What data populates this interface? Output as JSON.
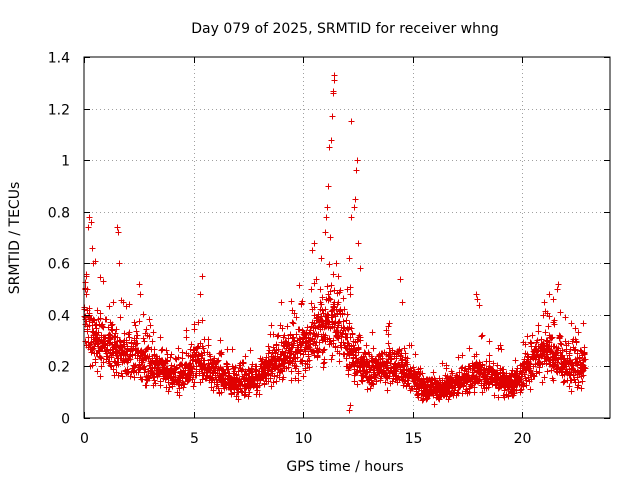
{
  "chart_data": {
    "type": "scatter",
    "title": "Day 079 of 2025, SRMTID for receiver whng",
    "xlabel": "GPS time / hours",
    "ylabel": "SRMTID / TECUs",
    "xlim": [
      0,
      24
    ],
    "ylim": [
      0,
      1.4
    ],
    "xticks": [
      0,
      5,
      10,
      15,
      20
    ],
    "yticks": [
      0,
      0.2,
      0.4,
      0.6,
      0.8,
      1,
      1.2,
      1.4
    ],
    "xtick_labels": [
      "0",
      "5",
      "10",
      "15",
      "20"
    ],
    "ytick_labels": [
      "0",
      "0.2",
      "0.4",
      "0.6",
      "0.8",
      "1",
      "1.2",
      "1.4"
    ],
    "grid": true,
    "marker": "+",
    "color": "#e00000",
    "series": [
      {
        "name": "SRMTID",
        "profile_x": [
          0.0,
          0.3,
          0.6,
          1.0,
          1.5,
          2.0,
          2.5,
          3.0,
          3.5,
          4.0,
          4.5,
          5.0,
          5.5,
          6.0,
          6.5,
          7.0,
          7.5,
          8.0,
          8.5,
          9.0,
          9.5,
          10.0,
          10.5,
          11.0,
          11.5,
          12.0,
          12.5,
          13.0,
          13.5,
          14.0,
          14.5,
          15.0,
          15.5,
          16.0,
          16.5,
          17.0,
          17.5,
          18.0,
          18.5,
          19.0,
          19.5,
          20.0,
          20.5,
          21.0,
          21.5,
          22.0,
          22.5,
          22.85
        ],
        "profile_y": [
          0.38,
          0.32,
          0.3,
          0.28,
          0.25,
          0.26,
          0.24,
          0.2,
          0.19,
          0.17,
          0.16,
          0.22,
          0.2,
          0.18,
          0.15,
          0.14,
          0.15,
          0.17,
          0.2,
          0.24,
          0.26,
          0.28,
          0.3,
          0.36,
          0.4,
          0.3,
          0.22,
          0.19,
          0.2,
          0.21,
          0.19,
          0.15,
          0.12,
          0.11,
          0.12,
          0.14,
          0.16,
          0.18,
          0.17,
          0.15,
          0.13,
          0.16,
          0.24,
          0.27,
          0.24,
          0.21,
          0.2,
          0.22
        ],
        "outliers": [
          [
            0.05,
            0.5
          ],
          [
            0.1,
            0.55
          ],
          [
            0.2,
            0.74
          ],
          [
            0.25,
            0.78
          ],
          [
            0.3,
            0.76
          ],
          [
            0.35,
            0.66
          ],
          [
            0.4,
            0.6
          ],
          [
            0.5,
            0.61
          ],
          [
            1.5,
            0.74
          ],
          [
            1.55,
            0.72
          ],
          [
            1.6,
            0.6
          ],
          [
            1.8,
            0.45
          ],
          [
            2.5,
            0.52
          ],
          [
            2.55,
            0.48
          ],
          [
            3.0,
            0.36
          ],
          [
            5.4,
            0.55
          ],
          [
            5.3,
            0.48
          ],
          [
            9.0,
            0.45
          ],
          [
            9.5,
            0.42
          ],
          [
            10.4,
            0.65
          ],
          [
            10.5,
            0.68
          ],
          [
            10.8,
            0.62
          ],
          [
            11.0,
            0.72
          ],
          [
            11.05,
            0.78
          ],
          [
            11.1,
            0.82
          ],
          [
            11.15,
            0.9
          ],
          [
            11.2,
            1.05
          ],
          [
            11.25,
            1.08
          ],
          [
            11.3,
            1.17
          ],
          [
            11.35,
            1.26
          ],
          [
            11.38,
            1.27
          ],
          [
            11.4,
            1.31
          ],
          [
            11.42,
            1.33
          ],
          [
            11.5,
            0.6
          ],
          [
            11.6,
            0.55
          ],
          [
            12.0,
            0.5
          ],
          [
            12.1,
            0.62
          ],
          [
            12.2,
            0.78
          ],
          [
            12.3,
            0.82
          ],
          [
            12.35,
            0.85
          ],
          [
            12.4,
            0.96
          ],
          [
            12.45,
            1.0
          ],
          [
            12.2,
            1.15
          ],
          [
            12.5,
            0.68
          ],
          [
            12.6,
            0.58
          ],
          [
            12.15,
            0.05
          ],
          [
            12.1,
            0.03
          ],
          [
            14.4,
            0.54
          ],
          [
            14.5,
            0.45
          ],
          [
            17.9,
            0.48
          ],
          [
            17.95,
            0.46
          ],
          [
            18.0,
            0.44
          ],
          [
            21.0,
            0.45
          ],
          [
            21.2,
            0.48
          ],
          [
            21.6,
            0.5
          ],
          [
            21.65,
            0.52
          ],
          [
            22.2,
            0.37
          ],
          [
            22.4,
            0.35
          ]
        ]
      }
    ]
  }
}
